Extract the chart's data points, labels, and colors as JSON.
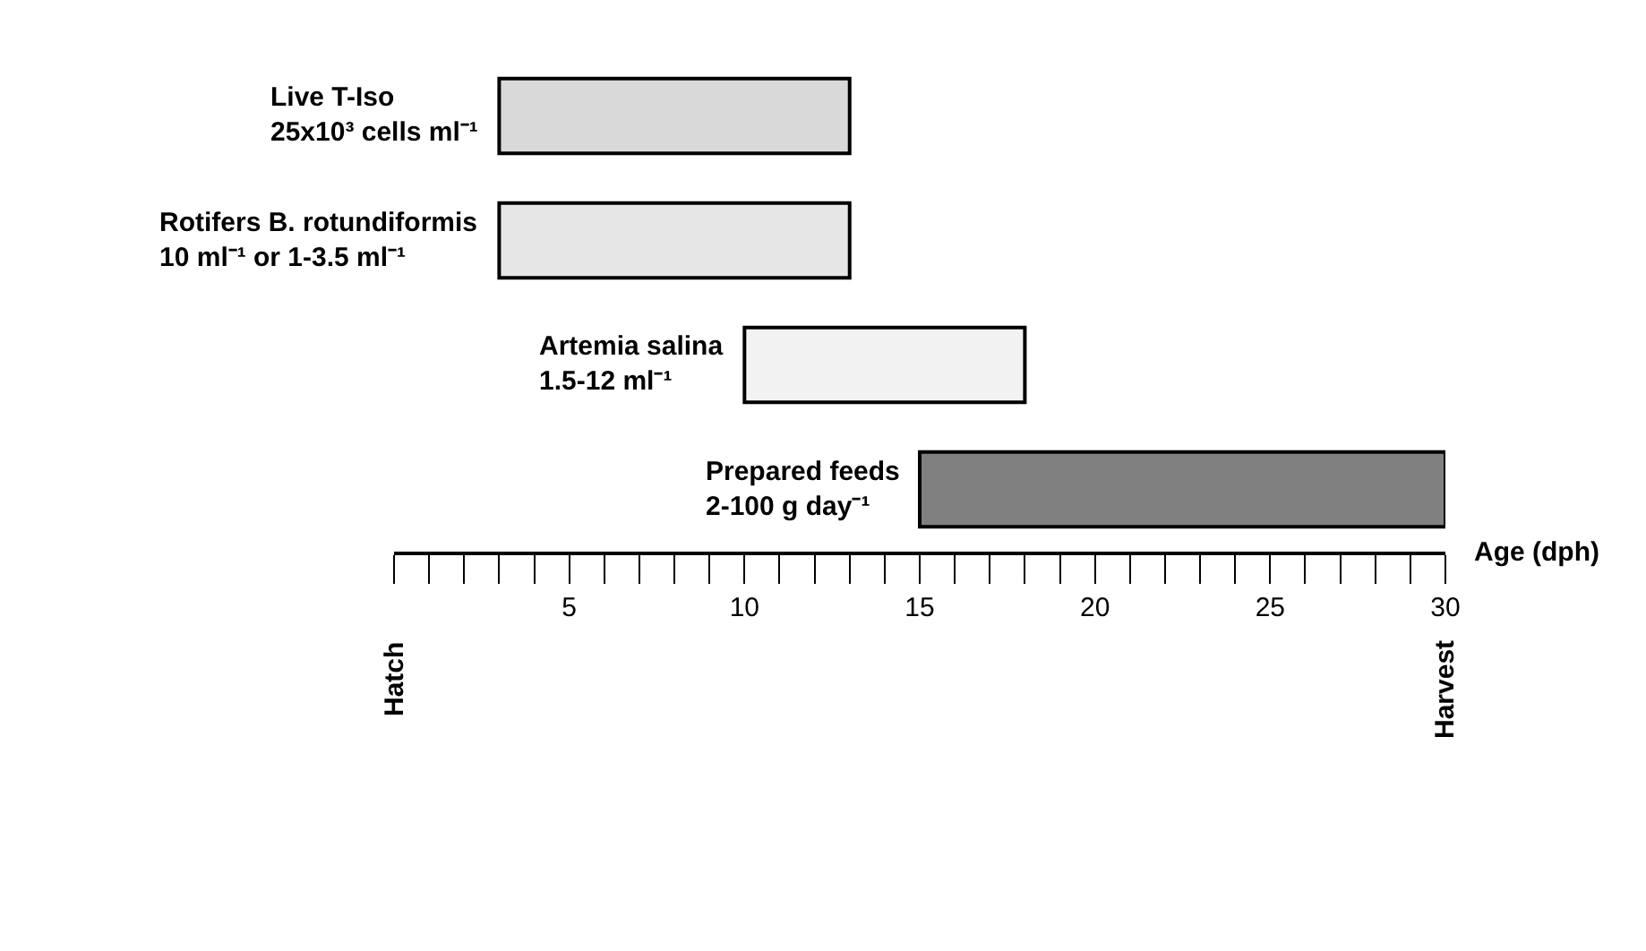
{
  "chart_data": {
    "type": "bar",
    "orientation": "horizontal",
    "xlabel": "Age (dph)",
    "categories": [
      "Live T-Iso\n25x10³ cells ml⁻¹",
      "Rotifers B. rotundiformis\n10 ml⁻¹ or 1-3.5 ml⁻¹",
      "Artemia salina\n1.5-12 ml⁻¹",
      "Prepared feeds\n2-100 g day⁻¹"
    ],
    "base": [
      3,
      3,
      10,
      15
    ],
    "values": [
      10,
      10,
      8,
      15
    ],
    "colors": [
      "#d9d9d9",
      "#e6e6e6",
      "#f2f2f2",
      "#808080"
    ],
    "xlim": [
      0,
      30
    ],
    "xticks": [
      {
        "value": 0,
        "label": null
      },
      {
        "value": 1,
        "label": null
      },
      {
        "value": 2,
        "label": null
      },
      {
        "value": 3,
        "label": null
      },
      {
        "value": 4,
        "label": null
      },
      5,
      {
        "value": 6,
        "label": null
      },
      {
        "value": 7,
        "label": null
      },
      {
        "value": 8,
        "label": null
      },
      {
        "value": 9,
        "label": null
      },
      10,
      {
        "value": 11,
        "label": null
      },
      {
        "value": 12,
        "label": null
      },
      {
        "value": 13,
        "label": null
      },
      {
        "value": 14,
        "label": null
      },
      15,
      {
        "value": 16,
        "label": null
      },
      {
        "value": 17,
        "label": null
      },
      {
        "value": 18,
        "label": null
      },
      {
        "value": 19,
        "label": null
      },
      20,
      {
        "value": 21,
        "label": null
      },
      {
        "value": 22,
        "label": null
      },
      {
        "value": 23,
        "label": null
      },
      {
        "value": 24,
        "label": null
      },
      25,
      {
        "value": 26,
        "label": null
      },
      {
        "value": 27,
        "label": null
      },
      {
        "value": 28,
        "label": null
      },
      {
        "value": 29,
        "label": null
      },
      30
    ],
    "annotations": [
      "Hatch",
      "Harvest"
    ],
    "tick_labels": "x"
  }
}
